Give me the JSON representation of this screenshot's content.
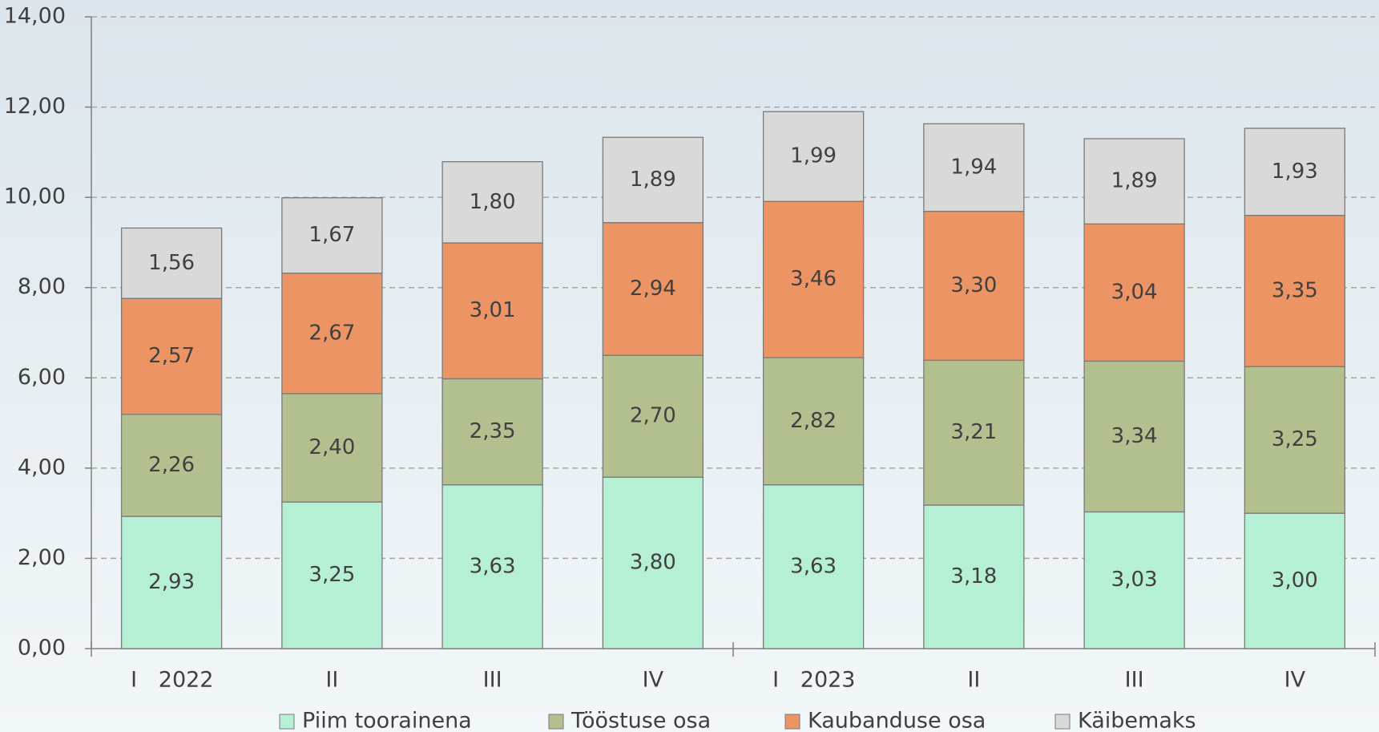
{
  "chart_data": {
    "type": "stacked_bar",
    "categories": [
      "I",
      "II",
      "III",
      "IV",
      "I",
      "II",
      "III",
      "IV"
    ],
    "group_labels": [
      "2022",
      "2023"
    ],
    "series": [
      {
        "name": "Piim toorainena",
        "color": "#b6f0d4",
        "values": [
          2.93,
          3.25,
          3.63,
          3.8,
          3.63,
          3.18,
          3.03,
          3.0
        ],
        "value_labels": [
          "2,93",
          "3,25",
          "3,63",
          "3,80",
          "3,63",
          "3,18",
          "3,03",
          "3,00"
        ]
      },
      {
        "name": "Tööstuse osa",
        "color": "#b2bf8f",
        "values": [
          2.26,
          2.4,
          2.35,
          2.7,
          2.82,
          3.21,
          3.34,
          3.25
        ],
        "value_labels": [
          "2,26",
          "2,40",
          "2,35",
          "2,70",
          "2,82",
          "3,21",
          "3,34",
          "3,25"
        ]
      },
      {
        "name": "Kaubanduse osa",
        "color": "#ec9463",
        "values": [
          2.57,
          2.67,
          3.01,
          2.94,
          3.46,
          3.3,
          3.04,
          3.35
        ],
        "value_labels": [
          "2,57",
          "2,67",
          "3,01",
          "2,94",
          "3,46",
          "3,30",
          "3,04",
          "3,35"
        ]
      },
      {
        "name": "Käibemaks",
        "color": "#d9d9d9",
        "values": [
          1.56,
          1.67,
          1.8,
          1.89,
          1.99,
          1.94,
          1.89,
          1.93
        ],
        "value_labels": [
          "1,56",
          "1,67",
          "1,80",
          "1,89",
          "1,99",
          "1,94",
          "1,89",
          "1,93"
        ]
      }
    ],
    "ylim": [
      0,
      14
    ],
    "yticks": [
      {
        "value": 0,
        "label": "0,00"
      },
      {
        "value": 2,
        "label": "2,00"
      },
      {
        "value": 4,
        "label": "4,00"
      },
      {
        "value": 6,
        "label": "6,00"
      },
      {
        "value": 8,
        "label": "8,00"
      },
      {
        "value": 10,
        "label": "10,00"
      },
      {
        "value": 12,
        "label": "12,00"
      },
      {
        "value": 14,
        "label": "14,00"
      }
    ],
    "grid": true,
    "legend": "bottom"
  }
}
